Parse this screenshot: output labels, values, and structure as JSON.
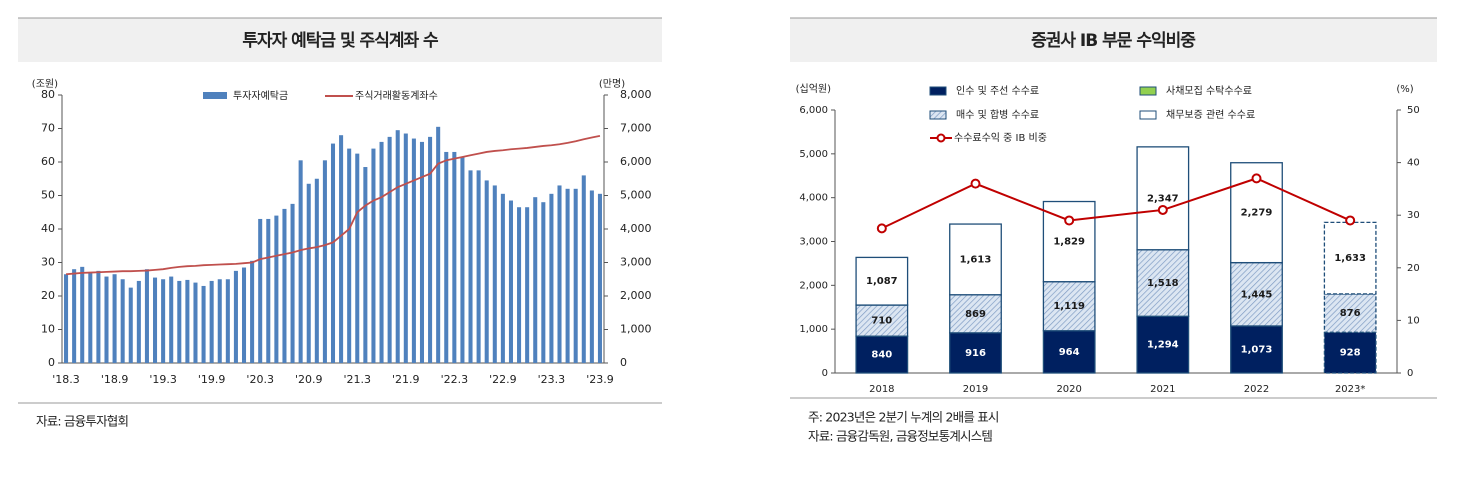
{
  "chart_data": [
    {
      "type": "bar",
      "title": "투자자 예탁금 및 주식계좌 수",
      "y_unit": "(조원)",
      "y2_unit": "(만명)",
      "categories": [
        "'18.3",
        null,
        null,
        null,
        null,
        null,
        "'18.9",
        null,
        null,
        null,
        null,
        null,
        "'19.3",
        null,
        null,
        null,
        null,
        null,
        "'19.9",
        null,
        null,
        null,
        null,
        null,
        "'20.3",
        null,
        null,
        null,
        null,
        null,
        "'20.9",
        null,
        null,
        null,
        null,
        null,
        "'21.3",
        null,
        null,
        null,
        null,
        null,
        "'21.9",
        null,
        null,
        null,
        null,
        null,
        "'22.3",
        null,
        null,
        null,
        null,
        null,
        "'22.9",
        null,
        null,
        null,
        null,
        null,
        "'23.3",
        null,
        null,
        null,
        null,
        null,
        "'23.9"
      ],
      "series": [
        {
          "name": "투자자예탁금",
          "kind": "bar",
          "color": "#4f81bd",
          "values": [
            26.5,
            28,
            28.7,
            27,
            27.5,
            25.8,
            26.5,
            25,
            22.5,
            24.5,
            28,
            25.5,
            25,
            25.8,
            24.5,
            24.8,
            24,
            23,
            24.5,
            25,
            25,
            27.5,
            28.5,
            30.5,
            43,
            43,
            44,
            46,
            47.5,
            60.5,
            53.5,
            55,
            60.5,
            65.5,
            68,
            64,
            62.5,
            58.5,
            64,
            66,
            67.5,
            69.5,
            68.5,
            67,
            66,
            67.5,
            70.5,
            63,
            63,
            61.5,
            57.5,
            57.5,
            54.5,
            53,
            50.5,
            48.5,
            46.5,
            46.5,
            49.5,
            48,
            50.5,
            53,
            52,
            52,
            56,
            51.5,
            50.5
          ]
        },
        {
          "name": "주식거래활동계좌수",
          "kind": "line",
          "axis": "y2",
          "color": "#c0504d",
          "values": [
            2650,
            2670,
            2690,
            2700,
            2710,
            2720,
            2730,
            2740,
            2740,
            2750,
            2760,
            2780,
            2800,
            2840,
            2870,
            2890,
            2900,
            2920,
            2930,
            2940,
            2950,
            2960,
            2980,
            3000,
            3100,
            3150,
            3200,
            3250,
            3300,
            3370,
            3420,
            3460,
            3520,
            3600,
            3800,
            4000,
            4500,
            4700,
            4850,
            4950,
            5100,
            5250,
            5350,
            5450,
            5550,
            5650,
            5950,
            6050,
            6100,
            6150,
            6200,
            6250,
            6300,
            6330,
            6350,
            6380,
            6400,
            6420,
            6450,
            6480,
            6500,
            6530,
            6570,
            6620,
            6680,
            6730,
            6780
          ]
        }
      ],
      "ylim": [
        0,
        80
      ],
      "yticks": [
        0,
        10,
        20,
        30,
        40,
        50,
        60,
        70,
        80
      ],
      "y2lim": [
        0,
        8000
      ],
      "y2ticks": [
        0,
        {
          "value": 1000,
          "label": "1,000"
        },
        {
          "value": 2000,
          "label": "2,000"
        },
        {
          "value": 3000,
          "label": "3,000"
        },
        {
          "value": 4000,
          "label": "4,000"
        },
        {
          "value": 5000,
          "label": "5,000"
        },
        {
          "value": 6000,
          "label": "6,000"
        },
        {
          "value": 7000,
          "label": "7,000"
        },
        {
          "value": 8000,
          "label": "8,000"
        }
      ],
      "notes": [
        "자료: 금융투자협회"
      ]
    },
    {
      "type": "bar",
      "stacked": true,
      "markers": true,
      "title": "증권사 IB 부문 수익비중",
      "y_unit": "(십억원)",
      "y2_unit": "(%)",
      "categories": [
        "2018",
        "2019",
        "2020",
        "2021",
        "2022",
        "2023*"
      ],
      "series": [
        {
          "name": "인수 및 주선 수수료",
          "kind": "bar",
          "color": "#002060",
          "label_color": "#ffffff",
          "values": [
            840,
            916,
            964,
            1294,
            1073,
            928
          ],
          "value_labels": [
            "840",
            "916",
            "964",
            "1,294",
            "1,073",
            "928"
          ]
        },
        {
          "name": "사채모집 수탁수수료",
          "kind": "bar",
          "color": "#92d050",
          "values": [
            0,
            0,
            0,
            0,
            0,
            0
          ]
        },
        {
          "name": "매수 및 합병 수수료",
          "kind": "bar",
          "color": "#c5d9f1",
          "hatch": true,
          "label_color": "#1a1a1a",
          "values": [
            710,
            869,
            1119,
            1518,
            1445,
            876
          ],
          "value_labels": [
            "710",
            "869",
            "1,119",
            "1,518",
            "1,445",
            "876"
          ]
        },
        {
          "name": "채무보증 관련 수수료",
          "kind": "bar",
          "color": "#ffffff",
          "label_color": "#1a1a1a",
          "values": [
            1087,
            1613,
            1829,
            2347,
            2279,
            1633
          ],
          "value_labels": [
            "1,087",
            "1,613",
            "1,829",
            "2,347",
            "2,279",
            "1,633"
          ]
        },
        {
          "name": "수수료수익 중 IB 비중",
          "kind": "line",
          "axis": "y2",
          "color": "#c00000",
          "values": [
            27.5,
            36,
            29,
            31,
            37,
            29
          ]
        }
      ],
      "bar_edge": "#1f4e79",
      "ylim": [
        0,
        6000
      ],
      "yticks": [
        0,
        {
          "value": 1000,
          "label": "1,000"
        },
        {
          "value": 2000,
          "label": "2,000"
        },
        {
          "value": 3000,
          "label": "3,000"
        },
        {
          "value": 4000,
          "label": "4,000"
        },
        {
          "value": 5000,
          "label": "5,000"
        },
        {
          "value": 6000,
          "label": "6,000"
        }
      ],
      "y2lim": [
        0,
        50
      ],
      "y2ticks": [
        0,
        10,
        20,
        30,
        40,
        50
      ],
      "notes": [
        "주: 2023년은 2분기 누계의 2배를 표시",
        "자료: 금융감독원, 금융정보통계시스템"
      ]
    }
  ]
}
